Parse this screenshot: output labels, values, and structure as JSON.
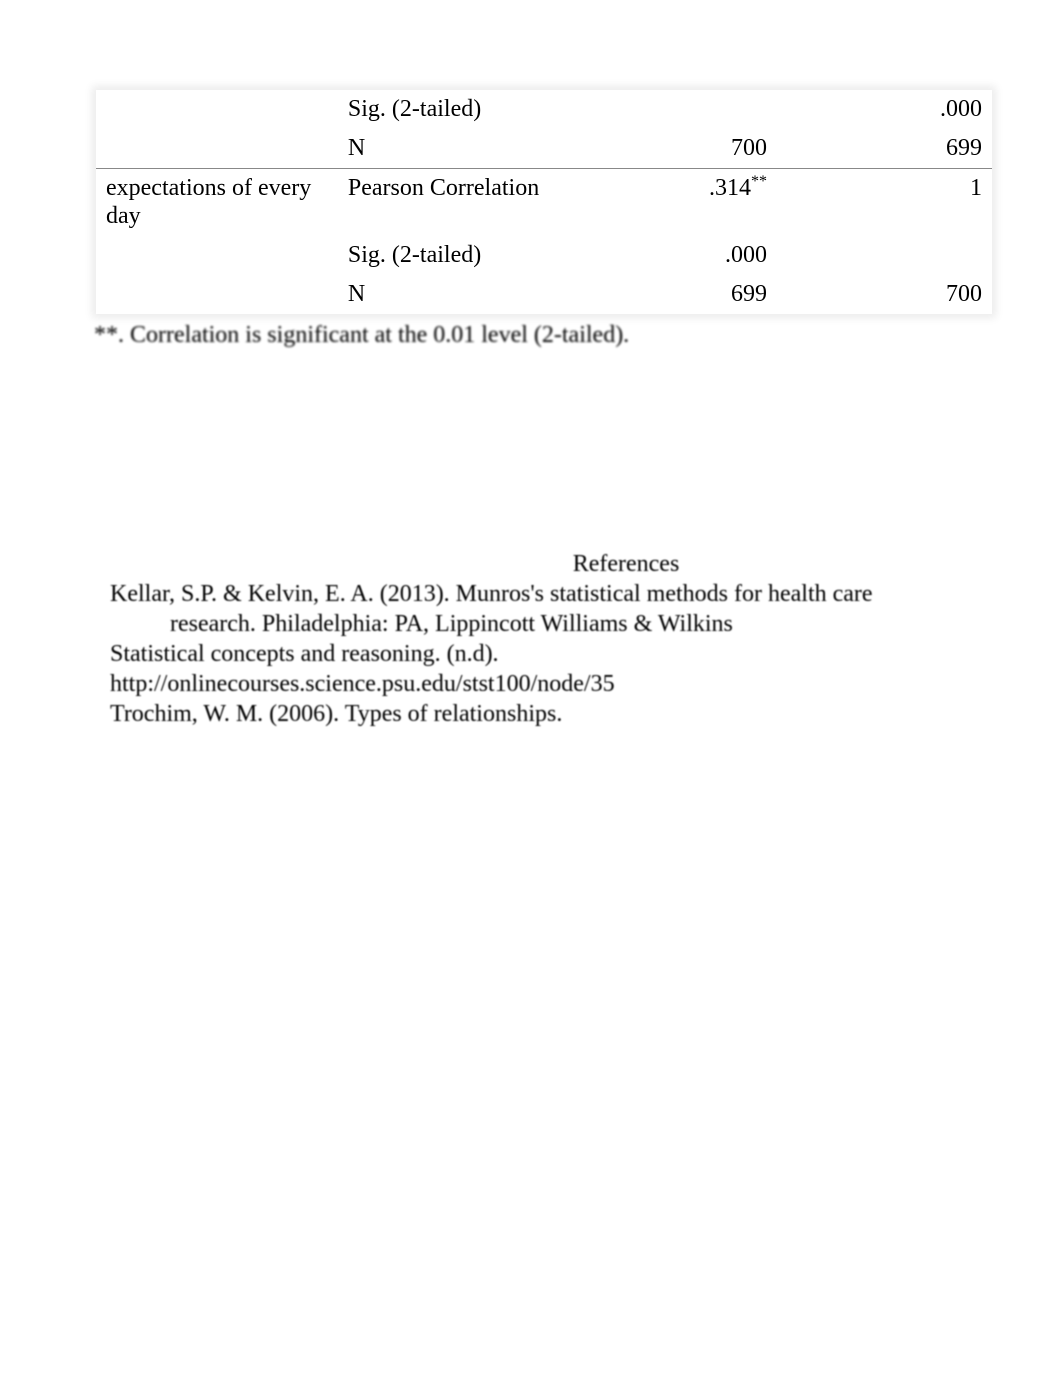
{
  "table": {
    "columns": {
      "label_width_pct": 27,
      "stat_width_pct": 25,
      "v1_width_pct": 24,
      "v2_width_pct": 24
    },
    "rows": [
      {
        "label": "",
        "stat": "Sig. (2-tailed)",
        "v1": "",
        "v2": ".000",
        "rule": false
      },
      {
        "label": "",
        "stat": "N",
        "v1": "700",
        "v2": "699",
        "rule": false
      },
      {
        "label": "expectations of every day",
        "stat": "Pearson Correlation",
        "v1": ".314",
        "v1_sup": "**",
        "v2": "1",
        "rule": true
      },
      {
        "label": "",
        "stat": "Sig. (2-tailed)",
        "v1": ".000",
        "v2": "",
        "rule": false
      },
      {
        "label": "",
        "stat": "N",
        "v1": "699",
        "v2": "700",
        "rule": false
      }
    ],
    "style": {
      "font_family": "Times New Roman",
      "font_size_pt": 18,
      "text_color": "#000000",
      "background_color": "#ffffff",
      "shadow_color": "rgba(0,0,0,0.08)"
    }
  },
  "footnote": "**. Correlation is significant at the 0.01 level (2-tailed).",
  "references": {
    "title": "References",
    "lines": [
      {
        "text": "Kellar, S.P. & Kelvin, E. A. (2013).  Munros's statistical methods for health care",
        "indent": false
      },
      {
        "text": "research.  Philadelphia: PA, Lippincott Williams & Wilkins",
        "indent": true
      },
      {
        "text": "Statistical concepts and reasoning. (n.d). http://onlinecourses.science.psu.edu/stst100/node/35",
        "indent": false
      },
      {
        "text": "Trochim, W. M. (2006). Types of relationships.",
        "indent": false
      }
    ]
  }
}
